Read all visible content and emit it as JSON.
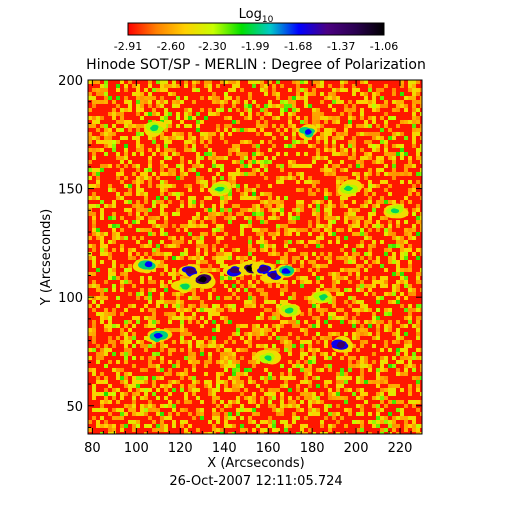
{
  "chart_data": {
    "type": "heatmap",
    "title": "Hinode SOT/SP - MERLIN : Degree of Polarization",
    "xlabel": "X (Arcseconds)",
    "ylabel": "Y (Arcseconds)",
    "footer": "26-Oct-2007 12:11:05.724",
    "colorbar": {
      "label_base": "Log",
      "label_sub": "10",
      "min": -2.91,
      "max": -1.06,
      "ticks": [
        "-2.91",
        "-2.60",
        "-2.30",
        "-1.99",
        "-1.68",
        "-1.37",
        "-1.06"
      ],
      "colors": [
        "#ff0000",
        "#ff8000",
        "#ffd000",
        "#c8ff00",
        "#00e000",
        "#00c8c8",
        "#0000ff",
        "#4b0082",
        "#2a0050",
        "#000000"
      ]
    },
    "xlim": [
      78,
      230
    ],
    "ylim": [
      37,
      200
    ],
    "x_ticks": [
      "80",
      "100",
      "120",
      "140",
      "160",
      "180",
      "200",
      "220"
    ],
    "y_ticks": [
      "50",
      "100",
      "150",
      "200"
    ],
    "dominant_level": -2.91,
    "low_polarization_fraction_note": null,
    "features": [
      {
        "x": 125,
        "y": 112,
        "level": -1.37
      },
      {
        "x": 130,
        "y": 108,
        "level": -1.06
      },
      {
        "x": 145,
        "y": 112,
        "level": -1.37
      },
      {
        "x": 152,
        "y": 113,
        "level": -1.06
      },
      {
        "x": 158,
        "y": 113,
        "level": -1.37
      },
      {
        "x": 163,
        "y": 110,
        "level": -1.37
      },
      {
        "x": 168,
        "y": 112,
        "level": -1.68
      },
      {
        "x": 105,
        "y": 115,
        "level": -1.68
      },
      {
        "x": 110,
        "y": 82,
        "level": -1.68
      },
      {
        "x": 122,
        "y": 105,
        "level": -1.99
      },
      {
        "x": 170,
        "y": 94,
        "level": -1.99
      },
      {
        "x": 185,
        "y": 100,
        "level": -1.99
      },
      {
        "x": 193,
        "y": 78,
        "level": -1.37
      },
      {
        "x": 178,
        "y": 176,
        "level": -1.68
      },
      {
        "x": 108,
        "y": 178,
        "level": -1.99
      },
      {
        "x": 197,
        "y": 150,
        "level": -1.99
      },
      {
        "x": 218,
        "y": 140,
        "level": -1.99
      },
      {
        "x": 160,
        "y": 72,
        "level": -1.99
      },
      {
        "x": 138,
        "y": 150,
        "level": -1.99
      }
    ]
  }
}
